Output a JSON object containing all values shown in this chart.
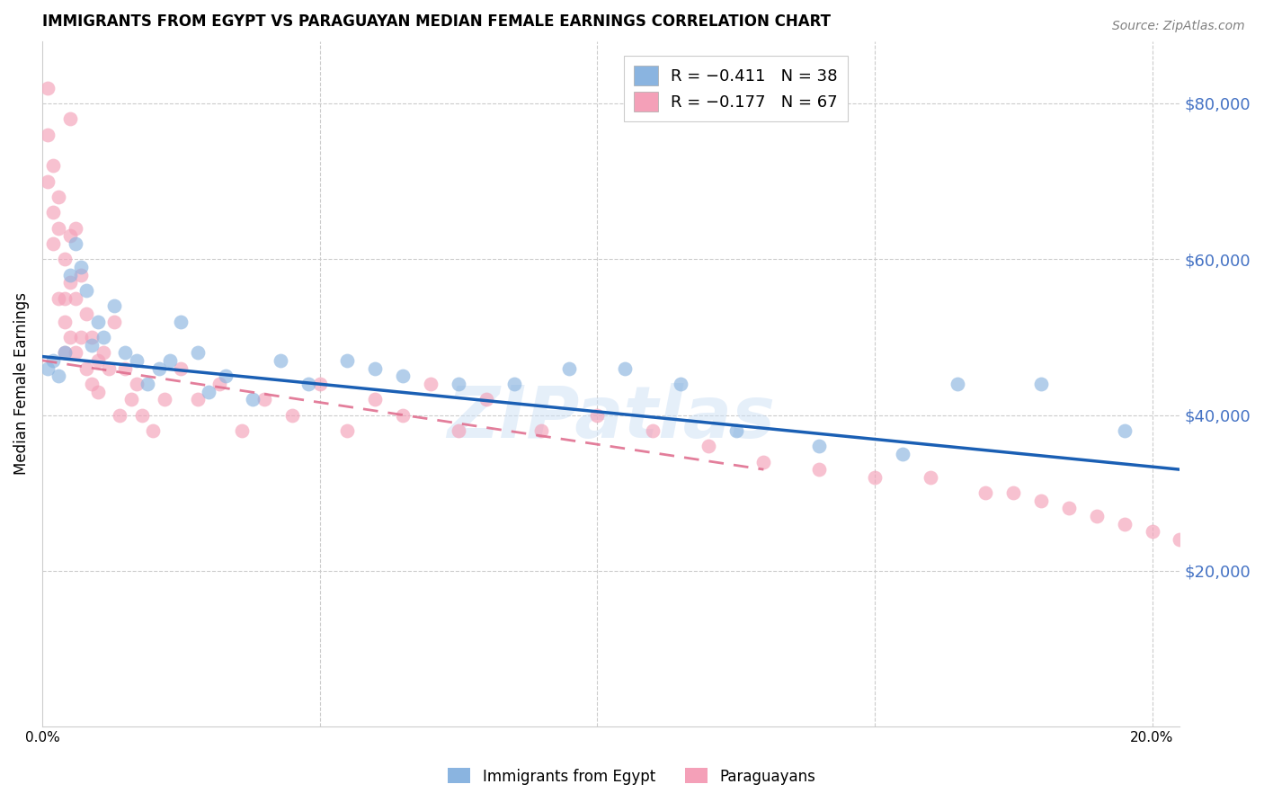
{
  "title": "IMMIGRANTS FROM EGYPT VS PARAGUAYAN MEDIAN FEMALE EARNINGS CORRELATION CHART",
  "source": "Source: ZipAtlas.com",
  "ylabel": "Median Female Earnings",
  "watermark": "ZIPatlas",
  "blue_color": "#8ab4e0",
  "pink_color": "#f4a0b8",
  "blue_line_color": "#1a5fb4",
  "pink_line_color": "#e07090",
  "xlim": [
    0.0,
    0.205
  ],
  "ylim": [
    0,
    88000
  ],
  "blue_scatter_x": [
    0.001,
    0.002,
    0.003,
    0.004,
    0.005,
    0.006,
    0.007,
    0.008,
    0.009,
    0.01,
    0.011,
    0.013,
    0.015,
    0.017,
    0.019,
    0.021,
    0.023,
    0.025,
    0.028,
    0.03,
    0.033,
    0.038,
    0.043,
    0.048,
    0.055,
    0.06,
    0.065,
    0.075,
    0.085,
    0.095,
    0.105,
    0.115,
    0.125,
    0.14,
    0.155,
    0.165,
    0.18,
    0.195
  ],
  "blue_scatter_y": [
    46000,
    47000,
    45000,
    48000,
    58000,
    62000,
    59000,
    56000,
    49000,
    52000,
    50000,
    54000,
    48000,
    47000,
    44000,
    46000,
    47000,
    52000,
    48000,
    43000,
    45000,
    42000,
    47000,
    44000,
    47000,
    46000,
    45000,
    44000,
    44000,
    46000,
    46000,
    44000,
    38000,
    36000,
    35000,
    44000,
    44000,
    38000
  ],
  "pink_scatter_x": [
    0.001,
    0.001,
    0.001,
    0.002,
    0.002,
    0.002,
    0.003,
    0.003,
    0.003,
    0.004,
    0.004,
    0.004,
    0.004,
    0.005,
    0.005,
    0.005,
    0.005,
    0.006,
    0.006,
    0.006,
    0.007,
    0.007,
    0.008,
    0.008,
    0.009,
    0.009,
    0.01,
    0.01,
    0.011,
    0.012,
    0.013,
    0.014,
    0.015,
    0.016,
    0.017,
    0.018,
    0.02,
    0.022,
    0.025,
    0.028,
    0.032,
    0.036,
    0.04,
    0.045,
    0.05,
    0.055,
    0.06,
    0.065,
    0.07,
    0.075,
    0.08,
    0.09,
    0.1,
    0.11,
    0.12,
    0.13,
    0.14,
    0.15,
    0.16,
    0.17,
    0.175,
    0.18,
    0.185,
    0.19,
    0.195,
    0.2,
    0.205
  ],
  "pink_scatter_y": [
    82000,
    76000,
    70000,
    72000,
    66000,
    62000,
    68000,
    64000,
    55000,
    60000,
    55000,
    52000,
    48000,
    78000,
    63000,
    57000,
    50000,
    64000,
    55000,
    48000,
    58000,
    50000,
    53000,
    46000,
    50000,
    44000,
    47000,
    43000,
    48000,
    46000,
    52000,
    40000,
    46000,
    42000,
    44000,
    40000,
    38000,
    42000,
    46000,
    42000,
    44000,
    38000,
    42000,
    40000,
    44000,
    38000,
    42000,
    40000,
    44000,
    38000,
    42000,
    38000,
    40000,
    38000,
    36000,
    34000,
    33000,
    32000,
    32000,
    30000,
    30000,
    29000,
    28000,
    27000,
    26000,
    25000,
    24000
  ],
  "blue_line_x": [
    0.0,
    0.205
  ],
  "blue_line_y": [
    47500,
    33000
  ],
  "pink_line_x": [
    0.0,
    0.13
  ],
  "pink_line_y": [
    47000,
    33000
  ],
  "legend_blue_label": "R = −0.411   N = 38",
  "legend_pink_label": "R = −0.177   N = 67",
  "bottom_legend_blue": "Immigrants from Egypt",
  "bottom_legend_pink": "Paraguayans"
}
